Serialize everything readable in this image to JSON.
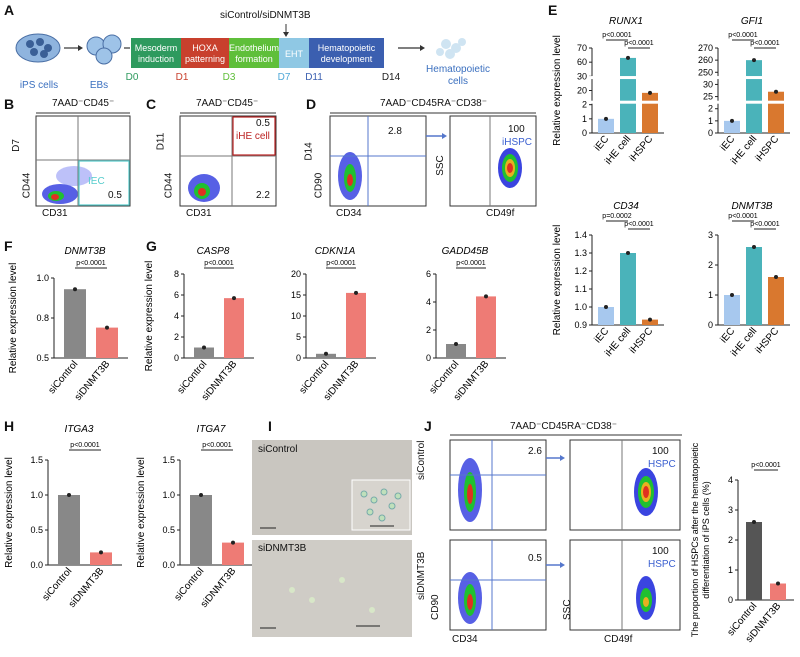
{
  "panels": {
    "A": "A",
    "B": "B",
    "C": "C",
    "D": "D",
    "E": "E",
    "F": "F",
    "G": "G",
    "H": "H",
    "I": "I",
    "J": "J"
  },
  "panel_a": {
    "cells": [
      "iPS cells",
      "EBs",
      "Hematopoietic cells"
    ],
    "stages": [
      {
        "label": "Mesoderm induction",
        "color": "#2e9a5e"
      },
      {
        "label": "HOXA patterning",
        "color": "#c8402d"
      },
      {
        "label": "Endothelium formation",
        "color": "#5fbf3a"
      },
      {
        "label": "EHT",
        "color": "#8fc8e4"
      },
      {
        "label": "Hematopoietic development",
        "color": "#3b5fb0"
      }
    ],
    "days": [
      "D0",
      "D1",
      "D3",
      "D7",
      "D11",
      "D14"
    ],
    "day_colors": [
      "#2e9a5e",
      "#c8402d",
      "#5fbf3a",
      "#4fa8d8",
      "#3b5fb0",
      "#222222"
    ],
    "treatment": "siControl/siDNMT3B"
  },
  "flow": {
    "B": {
      "gate": "7AAD⁻CD45⁻",
      "y_axis": "D7",
      "y_marker": "CD44",
      "x_axis": "CD31",
      "pop_label": "IEC",
      "pct": "0.5"
    },
    "C": {
      "gate": "7AAD⁻CD45⁻",
      "y_axis": "D11",
      "y_marker": "CD44",
      "x_axis": "CD31",
      "pop_label": "iHE cell",
      "pct_top": "0.5",
      "pct_bottom": "2.2"
    },
    "D": {
      "gate": "7AAD⁻CD45RA⁻CD38⁻",
      "y_axis": "D14",
      "y_marker": "CD90",
      "x_axis": "CD34",
      "pct": "2.8",
      "y_axis2": "SSC",
      "x_axis2": "CD49f",
      "pct2": "100",
      "pop_label2": "iHSPC"
    },
    "J": {
      "gate": "7AAD⁻CD45RA⁻CD38⁻",
      "row1": "siControl",
      "row2": "siDNMT3B",
      "y_marker": "CD90",
      "x_axis": "CD34",
      "pct1": "2.6",
      "pct2": "0.5",
      "y_axis2": "SSC",
      "x_axis2": "CD49f",
      "pct3": "100",
      "pct4": "100",
      "pop_label": "HSPC"
    }
  },
  "micro": {
    "top": "siControl",
    "bottom": "siDNMT3B"
  },
  "chart_data": [
    {
      "id": "E-RUNX1",
      "type": "bar",
      "title": "RUNX1",
      "categories": [
        "iEC",
        "iHE cell",
        "iHSPC"
      ],
      "values": [
        1,
        63,
        17
      ],
      "colors": [
        "#a7c8ee",
        "#4ab3ba",
        "#d9782f"
      ],
      "ylabel": "Relative expression level",
      "broken_axis": true,
      "yticks": [
        "0",
        "1",
        "2",
        "20",
        "30",
        "60",
        "70"
      ],
      "pvalues": [
        "p<0.0001",
        "p<0.0001"
      ]
    },
    {
      "id": "E-GFI1",
      "type": "bar",
      "title": "GFI1",
      "categories": [
        "iEC",
        "iHE cell",
        "iHSPC"
      ],
      "values": [
        1,
        260,
        27
      ],
      "colors": [
        "#a7c8ee",
        "#4ab3ba",
        "#d9782f"
      ],
      "broken_axis": true,
      "yticks": [
        "0",
        "1",
        "2",
        "25",
        "30",
        "250",
        "260",
        "270"
      ],
      "pvalues": [
        "p<0.0001",
        "p<0.0001"
      ]
    },
    {
      "id": "E-CD34",
      "type": "bar",
      "title": "CD34",
      "categories": [
        "iEC",
        "iHE cell",
        "iHSPC"
      ],
      "values": [
        1.0,
        1.3,
        0.93
      ],
      "colors": [
        "#a7c8ee",
        "#4ab3ba",
        "#d9782f"
      ],
      "ylabel": "Relative expression level",
      "ylim": [
        0.9,
        1.4
      ],
      "yticks": [
        "0.9",
        "1.0",
        "1.1",
        "1.2",
        "1.3",
        "1.4"
      ],
      "pvalues": [
        "p=0.0002",
        "p<0.0001"
      ]
    },
    {
      "id": "E-DNMT3B",
      "type": "bar",
      "title": "DNMT3B",
      "categories": [
        "iEC",
        "iHE cell",
        "iHSPC"
      ],
      "values": [
        1.0,
        2.6,
        1.6
      ],
      "colors": [
        "#a7c8ee",
        "#4ab3ba",
        "#d9782f"
      ],
      "ylim": [
        0,
        3
      ],
      "yticks": [
        "0",
        "1",
        "2",
        "3"
      ],
      "pvalues": [
        "p<0.0001",
        "p<0.0001"
      ]
    },
    {
      "id": "F",
      "type": "bar",
      "title": "DNMT3B",
      "categories": [
        "siControl",
        "siDNMT3B"
      ],
      "values": [
        0.93,
        0.69
      ],
      "colors": [
        "#888888",
        "#ee7b75"
      ],
      "ylabel": "Relative expression level",
      "ylim": [
        0.5,
        1.0
      ],
      "yticks": [
        "0.5",
        "0.8",
        "1.0"
      ],
      "pvalues": [
        "p<0.0001"
      ]
    },
    {
      "id": "G-CASP8",
      "type": "bar",
      "title": "CASP8",
      "categories": [
        "siControl",
        "siDNMT3B"
      ],
      "values": [
        1.0,
        5.7
      ],
      "colors": [
        "#888888",
        "#ee7b75"
      ],
      "ylabel": "Relative expression level",
      "ylim": [
        0,
        8
      ],
      "yticks": [
        "0",
        "2",
        "4",
        "6",
        "8"
      ],
      "pvalues": [
        "p<0.0001"
      ]
    },
    {
      "id": "G-CDKN1A",
      "type": "bar",
      "title": "CDKN1A",
      "categories": [
        "siControl",
        "siDNMT3B"
      ],
      "values": [
        1.0,
        15.5
      ],
      "colors": [
        "#888888",
        "#ee7b75"
      ],
      "ylim": [
        0,
        20
      ],
      "yticks": [
        "0",
        "5",
        "10",
        "15",
        "20"
      ],
      "pvalues": [
        "p<0.0001"
      ]
    },
    {
      "id": "G-GADD45B",
      "type": "bar",
      "title": "GADD45B",
      "categories": [
        "siControl",
        "siDNMT3B"
      ],
      "values": [
        1.0,
        4.4
      ],
      "colors": [
        "#888888",
        "#ee7b75"
      ],
      "ylim": [
        0,
        6
      ],
      "yticks": [
        "0",
        "2",
        "4",
        "6"
      ],
      "pvalues": [
        "p<0.0001"
      ]
    },
    {
      "id": "H-ITGA3",
      "type": "bar",
      "title": "ITGA3",
      "categories": [
        "siControl",
        "siDNMT3B"
      ],
      "values": [
        1.0,
        0.18
      ],
      "colors": [
        "#888888",
        "#ee7b75"
      ],
      "ylabel": "Relative expression level",
      "ylim": [
        0,
        1.5
      ],
      "yticks": [
        "0.0",
        "0.5",
        "1.0",
        "1.5"
      ],
      "pvalues": [
        "p<0.0001"
      ]
    },
    {
      "id": "H-ITGA7",
      "type": "bar",
      "title": "ITGA7",
      "categories": [
        "siControl",
        "siDNMT3B"
      ],
      "values": [
        1.0,
        0.32
      ],
      "colors": [
        "#888888",
        "#ee7b75"
      ],
      "ylabel": "Relative expression level",
      "ylim": [
        0,
        1.5
      ],
      "yticks": [
        "0.0",
        "0.5",
        "1.0",
        "1.5"
      ],
      "pvalues": [
        "p<0.0001"
      ]
    },
    {
      "id": "J-bar",
      "type": "bar",
      "title": "",
      "categories": [
        "siControl",
        "siDNMT3B"
      ],
      "values": [
        2.6,
        0.55
      ],
      "colors": [
        "#555555",
        "#ee7b75"
      ],
      "ylabel": "The proportion of HSPCs after the hematopoietic differentiation of iPS cells (%)",
      "ylim": [
        0,
        4
      ],
      "yticks": [
        "0",
        "1",
        "2",
        "3",
        "4"
      ],
      "pvalues": [
        "p<0.0001"
      ]
    }
  ]
}
